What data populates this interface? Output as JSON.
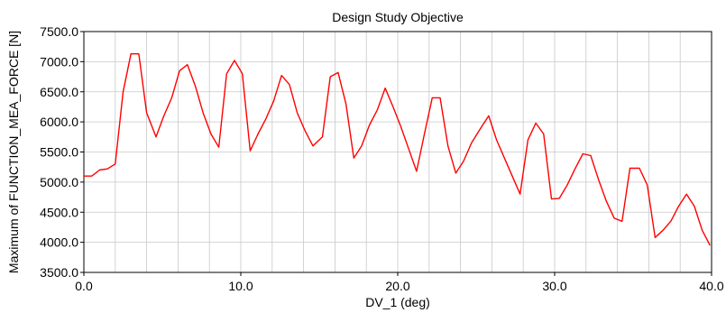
{
  "chart_data": {
    "type": "line",
    "title": "Design Study Objective",
    "xlabel": "DV_1 (deg)",
    "ylabel": "Maximum of FUNCTION_MEA_FORCE [N]",
    "xlim": [
      0,
      40
    ],
    "ylim": [
      3500,
      7500
    ],
    "xticks": [
      0,
      10,
      20,
      30,
      40
    ],
    "xtick_labels": [
      "0.0",
      "10.0",
      "20.0",
      "30.0",
      "40.0"
    ],
    "yticks": [
      3500,
      4000,
      4500,
      5000,
      5500,
      6000,
      6500,
      7000,
      7500
    ],
    "ytick_labels": [
      "3500.0",
      "4000.0",
      "4500.0",
      "5000.0",
      "5500.0",
      "6000.0",
      "6500.0",
      "7000.0",
      "7500.0"
    ],
    "grid": true,
    "legend": "none",
    "colors": {
      "line": "#ff0000",
      "grid": "#c8c8c8",
      "axis": "#000000"
    },
    "series": [
      {
        "x": [
          0.0,
          0.5,
          1.0,
          1.5,
          2.0,
          2.5,
          3.0,
          3.5,
          4.0,
          4.6,
          5.1,
          5.6,
          6.1,
          6.6,
          7.1,
          7.6,
          8.1,
          8.6,
          9.1,
          9.6,
          10.1,
          10.6,
          11.1,
          11.6,
          12.1,
          12.6,
          13.1,
          13.6,
          14.1,
          14.6,
          15.2,
          15.7,
          16.2,
          16.7,
          17.2,
          17.7,
          18.2,
          18.7,
          19.2,
          19.7,
          20.2,
          20.7,
          21.2,
          21.7,
          22.2,
          22.7,
          23.2,
          23.7,
          24.2,
          24.7,
          25.3,
          25.8,
          26.3,
          26.8,
          27.3,
          27.8,
          28.3,
          28.8,
          29.3,
          29.8,
          30.3,
          30.8,
          31.3,
          31.8,
          32.3,
          32.8,
          33.3,
          33.8,
          34.3,
          34.8,
          35.4,
          35.9,
          36.4,
          36.9,
          37.4,
          37.9,
          38.4,
          38.9,
          39.4,
          39.9
        ],
        "y": [
          5100,
          5100,
          5200,
          5220,
          5300,
          6500,
          7130,
          7130,
          6150,
          5750,
          6100,
          6400,
          6850,
          6950,
          6600,
          6150,
          5800,
          5580,
          6800,
          7020,
          6800,
          5520,
          5800,
          6050,
          6350,
          6770,
          6620,
          6150,
          5850,
          5600,
          5750,
          6750,
          6820,
          6300,
          5400,
          5600,
          5950,
          6200,
          6560,
          6250,
          5920,
          5550,
          5180,
          5800,
          6400,
          6400,
          5600,
          5150,
          5350,
          5650,
          5900,
          6100,
          5700,
          5400,
          5100,
          4800,
          5700,
          5980,
          5800,
          4720,
          4730,
          4950,
          5220,
          5470,
          5440,
          5040,
          4680,
          4400,
          4350,
          5230,
          5230,
          4950,
          4080,
          4200,
          4350,
          4600,
          4800,
          4600,
          4200,
          3950
        ]
      }
    ]
  }
}
